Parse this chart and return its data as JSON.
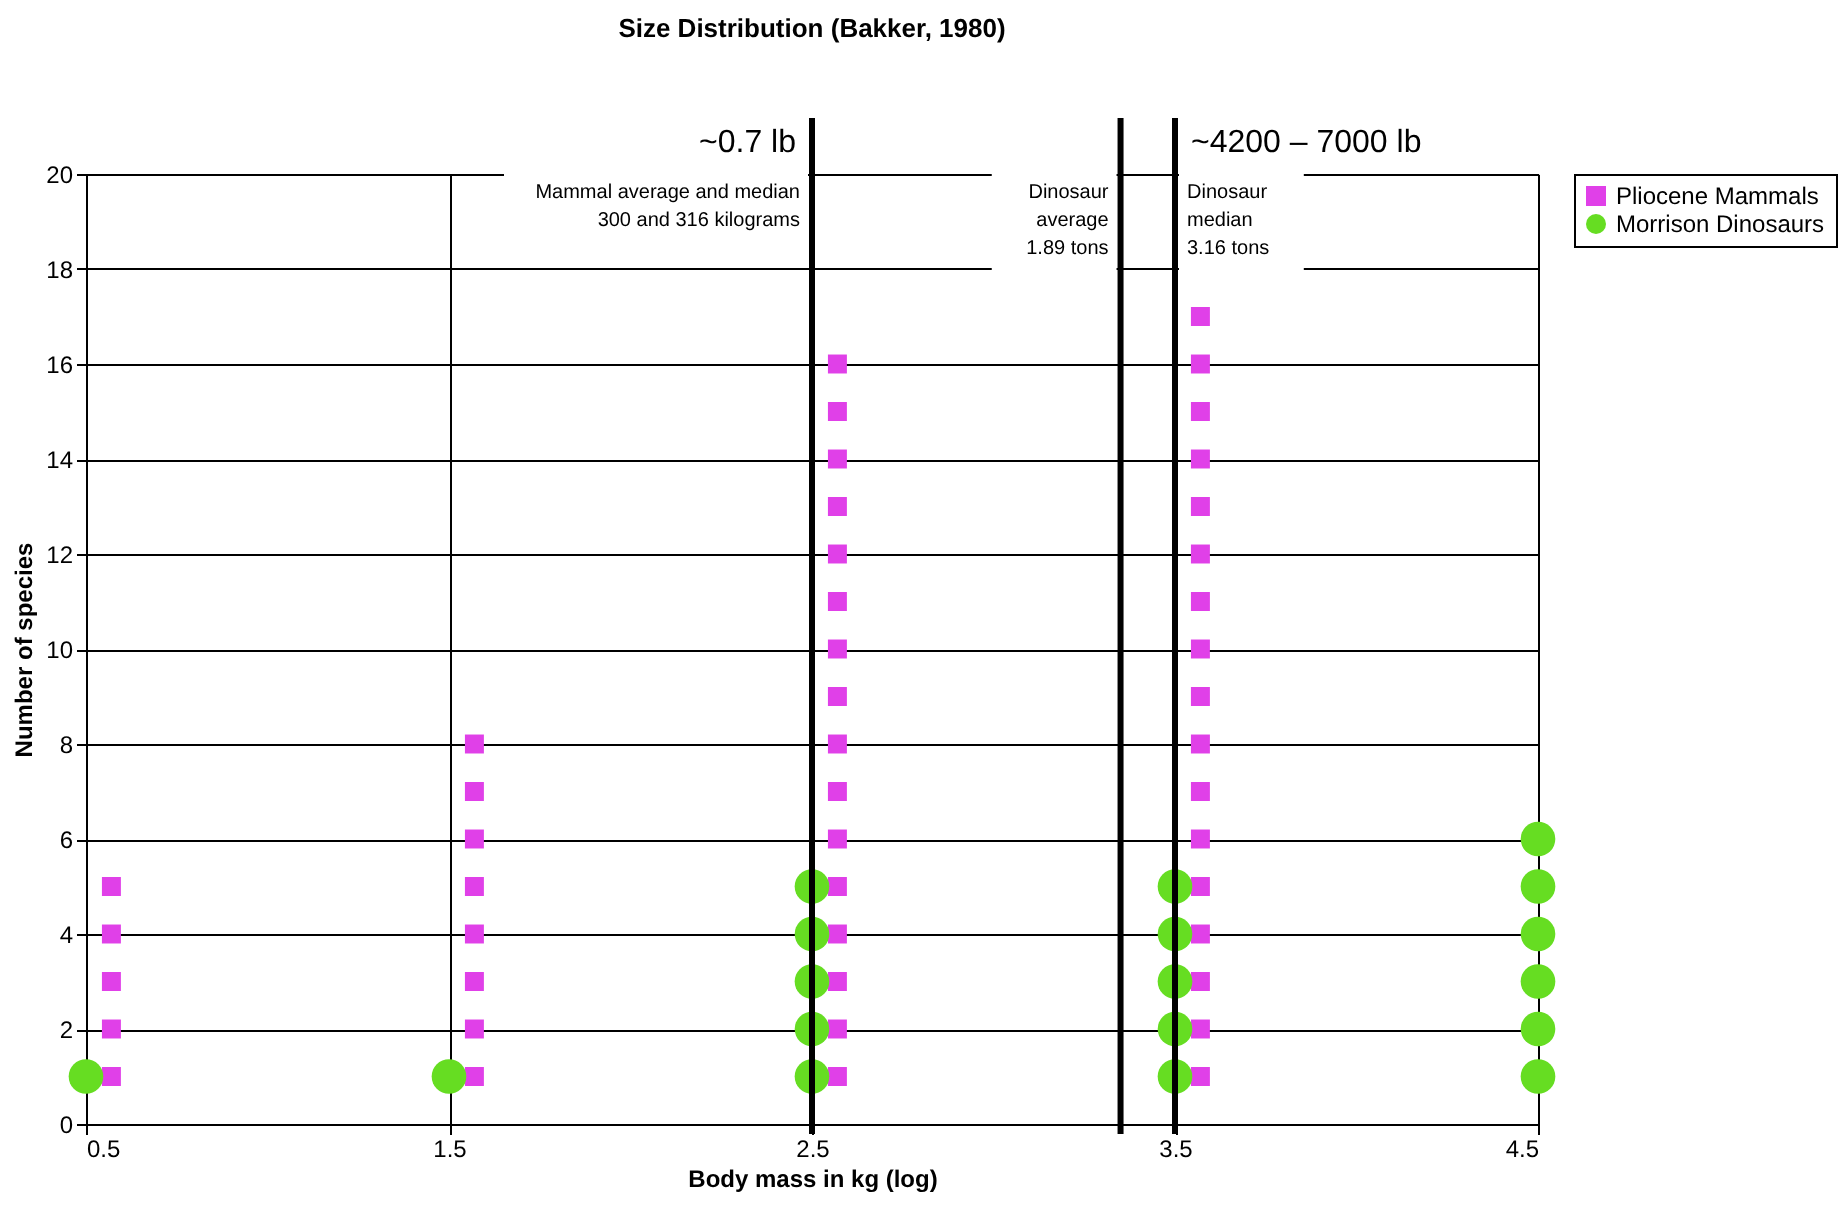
{
  "chart_data": {
    "type": "scatter",
    "title": "Size Distribution (Bakker, 1980)",
    "xlabel": "Body mass in kg (log)",
    "ylabel": "Number of species",
    "xlim": [
      0.5,
      4.5
    ],
    "xticks": [
      0.5,
      1.5,
      2.5,
      3.5,
      4.5
    ],
    "ylim": [
      0,
      20
    ],
    "yticks": [
      0,
      2,
      4,
      6,
      8,
      10,
      12,
      14,
      16,
      18,
      20
    ],
    "grid": true,
    "legend": "right",
    "series": [
      {
        "name": "Pliocene Mammals",
        "color": "#e040e8",
        "marker": "square",
        "x": [
          0.57,
          0.57,
          0.57,
          0.57,
          0.57,
          1.57,
          1.57,
          1.57,
          1.57,
          1.57,
          1.57,
          1.57,
          1.57,
          2.57,
          2.57,
          2.57,
          2.57,
          2.57,
          2.57,
          2.57,
          2.57,
          2.57,
          2.57,
          2.57,
          2.57,
          2.57,
          2.57,
          2.57,
          2.57,
          3.57,
          3.57,
          3.57,
          3.57,
          3.57,
          3.57,
          3.57,
          3.57,
          3.57,
          3.57,
          3.57,
          3.57,
          3.57,
          3.57,
          3.57,
          3.57,
          3.57
        ],
        "values": [
          1,
          2,
          3,
          4,
          5,
          1,
          2,
          3,
          4,
          5,
          6,
          7,
          8,
          1,
          2,
          3,
          4,
          5,
          6,
          7,
          8,
          9,
          10,
          11,
          12,
          13,
          14,
          15,
          16,
          1,
          2,
          3,
          4,
          5,
          6,
          7,
          8,
          9,
          10,
          11,
          12,
          13,
          14,
          15,
          16,
          17
        ]
      },
      {
        "name": "Morrison Dinosaurs",
        "color": "#66dd22",
        "marker": "circle",
        "x": [
          0.5,
          1.5,
          2.5,
          2.5,
          2.5,
          2.5,
          2.5,
          3.5,
          3.5,
          3.5,
          3.5,
          3.5,
          4.5,
          4.5,
          4.5,
          4.5,
          4.5,
          4.5
        ],
        "values": [
          1,
          1,
          1,
          2,
          3,
          4,
          5,
          1,
          2,
          3,
          4,
          5,
          1,
          2,
          3,
          4,
          5,
          6
        ]
      }
    ],
    "ref_lines": [
      {
        "axis": "x",
        "value": 2.5,
        "label": "Mammal average and median\n300 and 316 kilograms",
        "color": "#000000"
      },
      {
        "axis": "x",
        "value": 3.35,
        "label": "Dinosaur\naverage\n1.89 tons",
        "color": "#000000"
      },
      {
        "axis": "x",
        "value": 3.5,
        "label": "Dinosaur\nmedian\n3.16 tons",
        "color": "#000000"
      }
    ],
    "annotations": [
      {
        "text": "~0.7 lb",
        "x": 2.5
      },
      {
        "text": "~4200 – 7000 lb",
        "x": 3.5
      }
    ]
  }
}
